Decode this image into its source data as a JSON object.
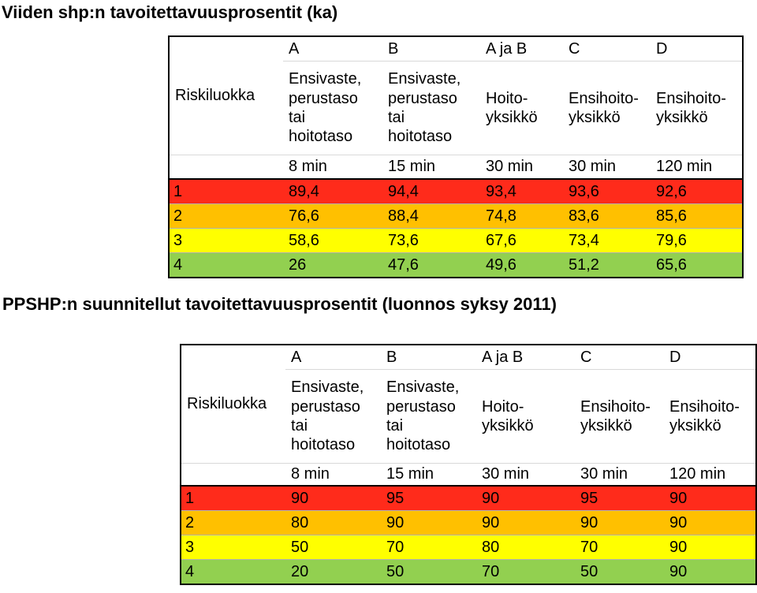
{
  "colors": {
    "1": "#ff2b1b",
    "2": "#ffc000",
    "3": "#ffff00",
    "4": "#92d050"
  },
  "tables": [
    {
      "title": "Viiden shp:n tavoitettavuusprosentit (ka)",
      "risk_label": "Riskiluokka",
      "columns": [
        {
          "letter": "A",
          "desc": [
            "Ensivaste,",
            "perustaso",
            "tai",
            "hoitotaso"
          ],
          "time": "8 min"
        },
        {
          "letter": "B",
          "desc": [
            "Ensivaste,",
            "perustaso",
            "tai",
            "hoitotaso"
          ],
          "time": "15 min"
        },
        {
          "letter": "A ja B",
          "desc": [
            "Hoito-",
            "yksikkö"
          ],
          "time": "30 min"
        },
        {
          "letter": "C",
          "desc": [
            "Ensihoito-",
            "yksikkö"
          ],
          "time": "30 min"
        },
        {
          "letter": "D",
          "desc": [
            "Ensihoito-",
            "yksikkö"
          ],
          "time": "120 min"
        }
      ],
      "rows": [
        {
          "risk": "1",
          "values": [
            "89,4",
            "94,4",
            "93,4",
            "93,6",
            "92,6"
          ]
        },
        {
          "risk": "2",
          "values": [
            "76,6",
            "88,4",
            "74,8",
            "83,6",
            "85,6"
          ]
        },
        {
          "risk": "3",
          "values": [
            "58,6",
            "73,6",
            "67,6",
            "73,4",
            "79,6"
          ]
        },
        {
          "risk": "4",
          "values": [
            "26",
            "47,6",
            "49,6",
            "51,2",
            "65,6"
          ]
        }
      ]
    },
    {
      "title": "PPSHP:n suunnitellut tavoitettavuusprosentit (luonnos syksy 2011)",
      "risk_label": "Riskiluokka",
      "columns": [
        {
          "letter": "A",
          "desc": [
            "Ensivaste,",
            "perustaso",
            "tai",
            "hoitotaso"
          ],
          "time": "8 min"
        },
        {
          "letter": "B",
          "desc": [
            "Ensivaste,",
            "perustaso",
            "tai",
            "hoitotaso"
          ],
          "time": "15 min"
        },
        {
          "letter": "A ja B",
          "desc": [
            "Hoito-",
            "yksikkö"
          ],
          "time": "30 min"
        },
        {
          "letter": "C",
          "desc": [
            "Ensihoito-",
            "yksikkö"
          ],
          "time": "30 min"
        },
        {
          "letter": "D",
          "desc": [
            "Ensihoito-",
            "yksikkö"
          ],
          "time": "120 min"
        }
      ],
      "rows": [
        {
          "risk": "1",
          "values": [
            "90",
            "95",
            "90",
            "95",
            "90"
          ]
        },
        {
          "risk": "2",
          "values": [
            "80",
            "90",
            "90",
            "90",
            "90"
          ]
        },
        {
          "risk": "3",
          "values": [
            "50",
            "70",
            "80",
            "70",
            "90"
          ]
        },
        {
          "risk": "4",
          "values": [
            "20",
            "50",
            "70",
            "50",
            "90"
          ]
        }
      ]
    }
  ]
}
